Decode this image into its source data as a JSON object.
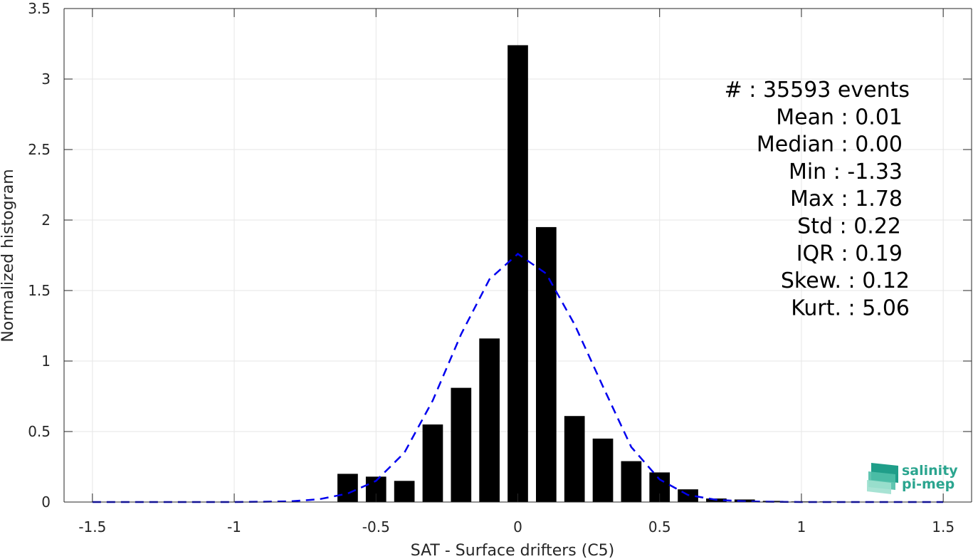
{
  "chart_data": {
    "type": "bar",
    "xlabel": "SAT - Surface drifters (C5)",
    "ylabel": "Normalized histogram",
    "xlim": [
      -1.6,
      1.6
    ],
    "ylim": [
      0,
      3.5
    ],
    "xticks": [
      -1.5,
      -1,
      -0.5,
      0,
      0.5,
      1,
      1.5
    ],
    "xtick_labels": [
      "-1.5",
      "-1",
      "-0.5",
      "0",
      "0.5",
      "1",
      "1.5"
    ],
    "yticks": [
      0,
      0.5,
      1,
      1.5,
      2,
      2.5,
      3,
      3.5
    ],
    "ytick_labels": [
      "0",
      "0.5",
      "1",
      "1.5",
      "2",
      "2.5",
      "3",
      "3.5"
    ],
    "grid": true,
    "bars": {
      "name": "",
      "color": "#000000",
      "bin_width": 0.1,
      "centers": [
        -0.6,
        -0.5,
        -0.4,
        -0.3,
        -0.2,
        -0.1,
        0,
        0.1,
        0.2,
        0.3,
        0.4,
        0.5,
        0.6,
        0.7,
        0.8,
        0.9,
        1.0,
        1.1
      ],
      "values": [
        0.2,
        0.18,
        0.15,
        0.55,
        0.81,
        1.16,
        3.24,
        1.95,
        0.61,
        0.45,
        0.29,
        0.21,
        0.09,
        0.025,
        0.018,
        0.008,
        0.004,
        0.004
      ]
    },
    "fit": {
      "name": "",
      "type": "line",
      "style": "dashed",
      "color": "#0000ee",
      "x": [
        -1.5,
        -1.4,
        -1.3,
        -1.2,
        -1.1,
        -1.0,
        -0.9,
        -0.8,
        -0.7,
        -0.6,
        -0.5,
        -0.4,
        -0.3,
        -0.2,
        -0.1,
        0,
        0.1,
        0.2,
        0.3,
        0.4,
        0.5,
        0.6,
        0.7,
        0.8,
        0.9,
        1.0,
        1.1,
        1.2,
        1.3,
        1.4,
        1.5
      ],
      "y": [
        0,
        0,
        0,
        0,
        0,
        0,
        0.002,
        0.005,
        0.02,
        0.06,
        0.15,
        0.35,
        0.72,
        1.19,
        1.58,
        1.76,
        1.62,
        1.26,
        0.82,
        0.39,
        0.16,
        0.05,
        0.016,
        0.005,
        0.002,
        0,
        0,
        0,
        0,
        0,
        0
      ]
    },
    "stats": [
      "#  : 35593 events",
      "Mean : 0.01",
      "Median : 0.00",
      "Min : -1.33",
      "Max : 1.78",
      "Std : 0.22",
      "IQR : 0.19",
      "Skew. : 0.12",
      "Kurt. : 5.06"
    ]
  },
  "logo": {
    "line1": "salinity",
    "line2": "pi-mep",
    "colors": [
      "#1f9e89",
      "#7fd6c2",
      "#2ba58f"
    ]
  },
  "colors": {
    "axis": "#262626",
    "grid": "#e6e6e6"
  }
}
